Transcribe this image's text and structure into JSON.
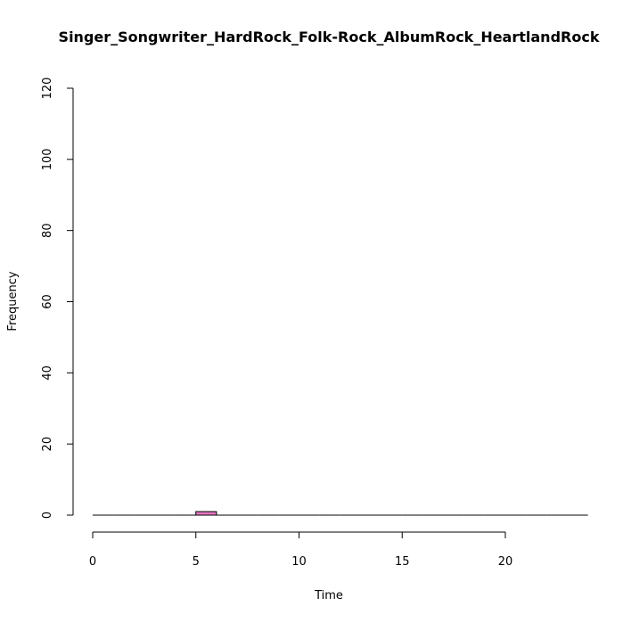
{
  "chart_data": {
    "type": "bar",
    "title": "Singer_Songwriter_HardRock_Folk-Rock_AlbumRock_HeartlandRock",
    "xlabel": "Time",
    "ylabel": "Frequency",
    "xlim": [
      0,
      24
    ],
    "ylim": [
      0,
      120
    ],
    "x_ticks": [
      0,
      5,
      10,
      15,
      20
    ],
    "y_ticks": [
      0,
      20,
      40,
      60,
      80,
      100,
      120
    ],
    "bin_width": 1,
    "bins": [
      {
        "start": 5,
        "end": 6,
        "count": 1
      }
    ],
    "bar_color": "#e377c2",
    "grid": false
  }
}
